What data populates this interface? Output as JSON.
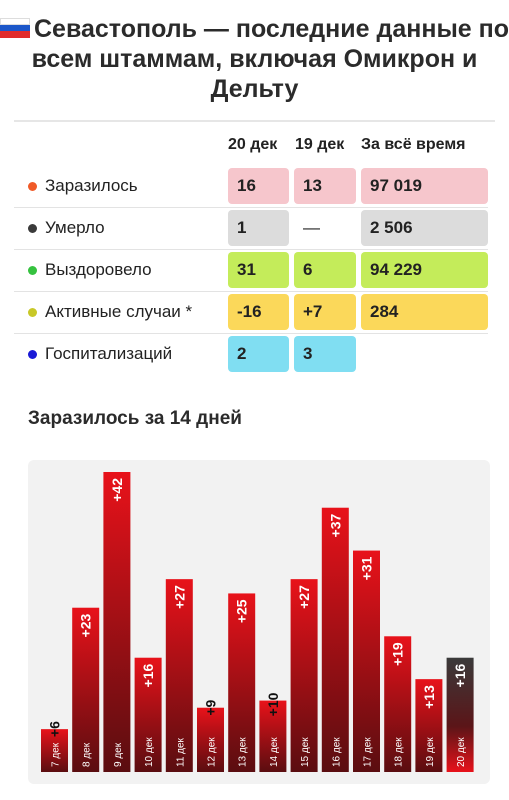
{
  "header": {
    "flag_colors": [
      "#ffffff",
      "#1c57c9",
      "#e12b2b"
    ],
    "title": "Севастополь — последние данные по всем штаммам, включая Омикрон и Дельту"
  },
  "table": {
    "columns": [
      "20 дек",
      "19 дек",
      "За всё время"
    ],
    "rows": [
      {
        "label": "Заразилось",
        "dot_color": "#f05a28",
        "cell_color": "#f6c6cc",
        "values": [
          "16",
          "13",
          "97 019"
        ]
      },
      {
        "label": "Умерло",
        "dot_color": "#3a3a3a",
        "cell_color": "#dcdcdc",
        "values": [
          "1",
          "—",
          "2 506"
        ]
      },
      {
        "label": "Выздоровело",
        "dot_color": "#35c23f",
        "cell_color": "#c4ec5a",
        "values": [
          "31",
          "6",
          "94 229"
        ]
      },
      {
        "label": "Активные случаи *",
        "dot_color": "#c8c828",
        "cell_color": "#fbd85a",
        "values": [
          "-16",
          "+7",
          "284"
        ]
      },
      {
        "label": "Госпитализаций",
        "dot_color": "#1a1ad6",
        "cell_color": "#80def2",
        "values": [
          "2",
          "3",
          ""
        ]
      }
    ]
  },
  "chart_section_title": "Заразилось за 14 дней",
  "chart_data": {
    "type": "bar",
    "categories": [
      "7 дек",
      "8 дек",
      "9 дек",
      "10 дек",
      "11 дек",
      "12 дек",
      "13 дек",
      "14 дек",
      "15 дек",
      "16 дек",
      "17 дек",
      "18 дек",
      "19 дек",
      "20 дек"
    ],
    "values": [
      6,
      23,
      42,
      16,
      27,
      9,
      25,
      10,
      27,
      37,
      31,
      19,
      13,
      16
    ],
    "labels": [
      "+6",
      "+23",
      "+42",
      "+16",
      "+27",
      "+9",
      "+25",
      "+10",
      "+27",
      "+37",
      "+31",
      "+19",
      "+13",
      "+16"
    ],
    "ylim": [
      0,
      42
    ],
    "bar_color": "#e0141c",
    "last_bar_color": "#333333"
  }
}
